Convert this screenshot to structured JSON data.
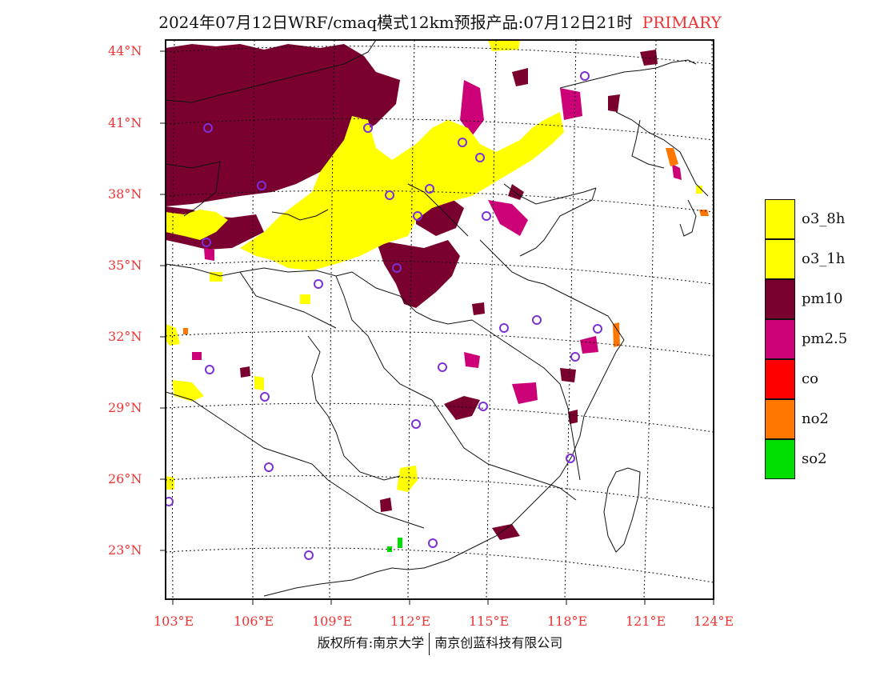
{
  "title": {
    "main": "2024年07月12日WRF/cmaq模式12km预报产品:07月12日21时",
    "subtitle": "PRIMARY"
  },
  "lat_labels": [
    "44°N",
    "41°N",
    "38°N",
    "35°N",
    "32°N",
    "29°N",
    "26°N",
    "23°N"
  ],
  "lon_labels": [
    "103°E",
    "106°E",
    "109°E",
    "112°E",
    "115°E",
    "118°E",
    "121°E",
    "124°E"
  ],
  "legend": [
    {
      "label": "o3_8h",
      "color": "#ffff00"
    },
    {
      "label": "o3_1h",
      "color": "#ffff00"
    },
    {
      "label": "pm10",
      "color": "#7a0030"
    },
    {
      "label": "pm2.5",
      "color": "#cc0077"
    },
    {
      "label": "co",
      "color": "#ff0000"
    },
    {
      "label": "no2",
      "color": "#ff7700"
    },
    {
      "label": "so2",
      "color": "#00dd00"
    }
  ],
  "copyright": {
    "left": "版权所有:南京大学",
    "right": "南京创蓝科技有限公司"
  }
}
